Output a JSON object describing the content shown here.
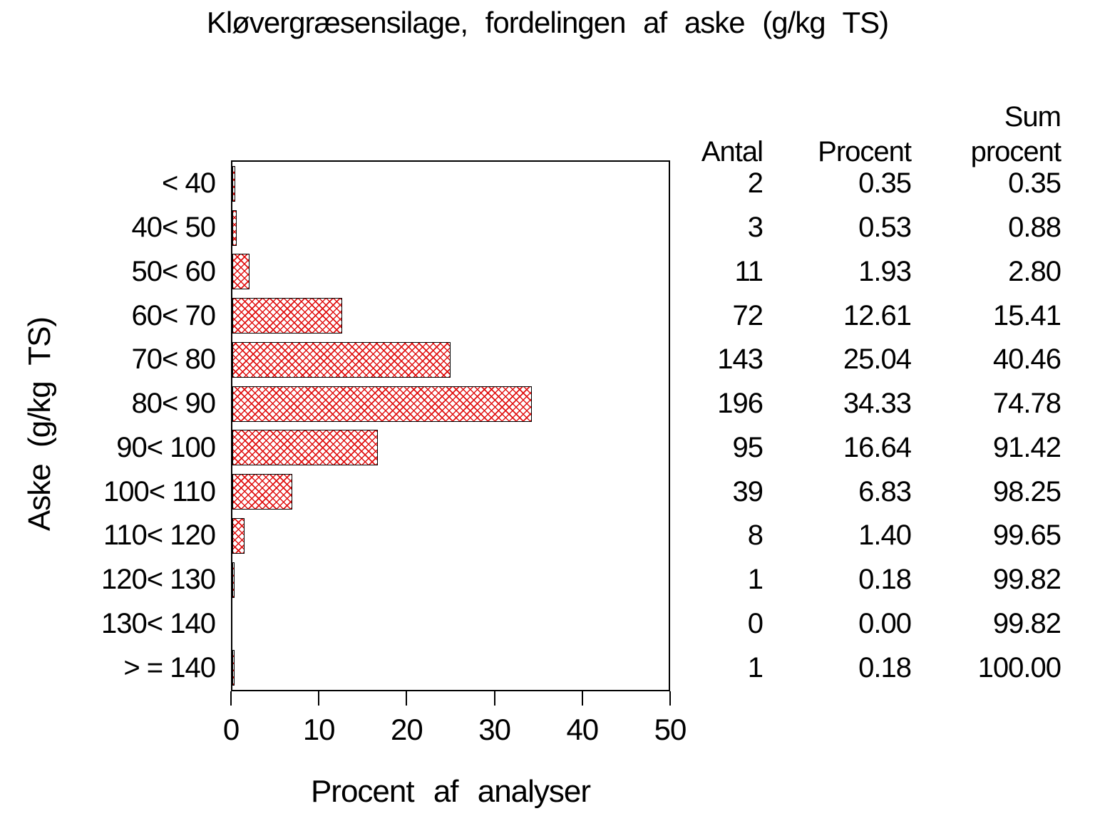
{
  "title": "Kløvergræsensilage, fordelingen af aske (g/kg TS)",
  "chart_data": {
    "type": "bar",
    "orientation": "horizontal",
    "title": "Kløvergræsensilage, fordelingen af aske (g/kg TS)",
    "xlabel": "Procent af analyser",
    "ylabel": "Aske (g/kg TS)",
    "xlim": [
      0,
      50
    ],
    "xticks": [
      "0",
      "10",
      "20",
      "30",
      "40",
      "50"
    ],
    "grid": false,
    "legend": false,
    "bar_fill_color": "#e01010",
    "bar_pattern": "crosshatch",
    "bar_border_color": "#000000",
    "categories": [
      "< 40",
      "40< 50",
      "50< 60",
      "60< 70",
      "70< 80",
      "80< 90",
      "90< 100",
      "100< 110",
      "110< 120",
      "120< 130",
      "130< 140",
      "> = 140"
    ],
    "series": [
      {
        "name": "Procent af analyser",
        "values": [
          0.35,
          0.53,
          1.93,
          12.61,
          25.04,
          34.33,
          16.64,
          6.83,
          1.4,
          0.18,
          0.0,
          0.18
        ]
      },
      {
        "name": "Antal",
        "values": [
          2,
          3,
          11,
          72,
          143,
          196,
          95,
          39,
          8,
          1,
          0,
          1
        ]
      },
      {
        "name": "Sum procent",
        "values": [
          0.35,
          0.88,
          2.8,
          15.41,
          40.46,
          74.78,
          91.42,
          98.25,
          99.65,
          99.82,
          99.82,
          100.0
        ]
      }
    ]
  },
  "table": {
    "header_line1": {
      "col3": "Sum"
    },
    "header_line2": {
      "col1": "Antal",
      "col2": "Procent",
      "col3": "procent"
    },
    "rows": [
      [
        "2",
        "0.35",
        "0.35"
      ],
      [
        "3",
        "0.53",
        "0.88"
      ],
      [
        "11",
        "1.93",
        "2.80"
      ],
      [
        "72",
        "12.61",
        "15.41"
      ],
      [
        "143",
        "25.04",
        "40.46"
      ],
      [
        "196",
        "34.33",
        "74.78"
      ],
      [
        "95",
        "16.64",
        "91.42"
      ],
      [
        "39",
        "6.83",
        "98.25"
      ],
      [
        "8",
        "1.40",
        "99.65"
      ],
      [
        "1",
        "0.18",
        "99.82"
      ],
      [
        "0",
        "0.00",
        "99.82"
      ],
      [
        "1",
        "0.18",
        "100.00"
      ]
    ]
  }
}
